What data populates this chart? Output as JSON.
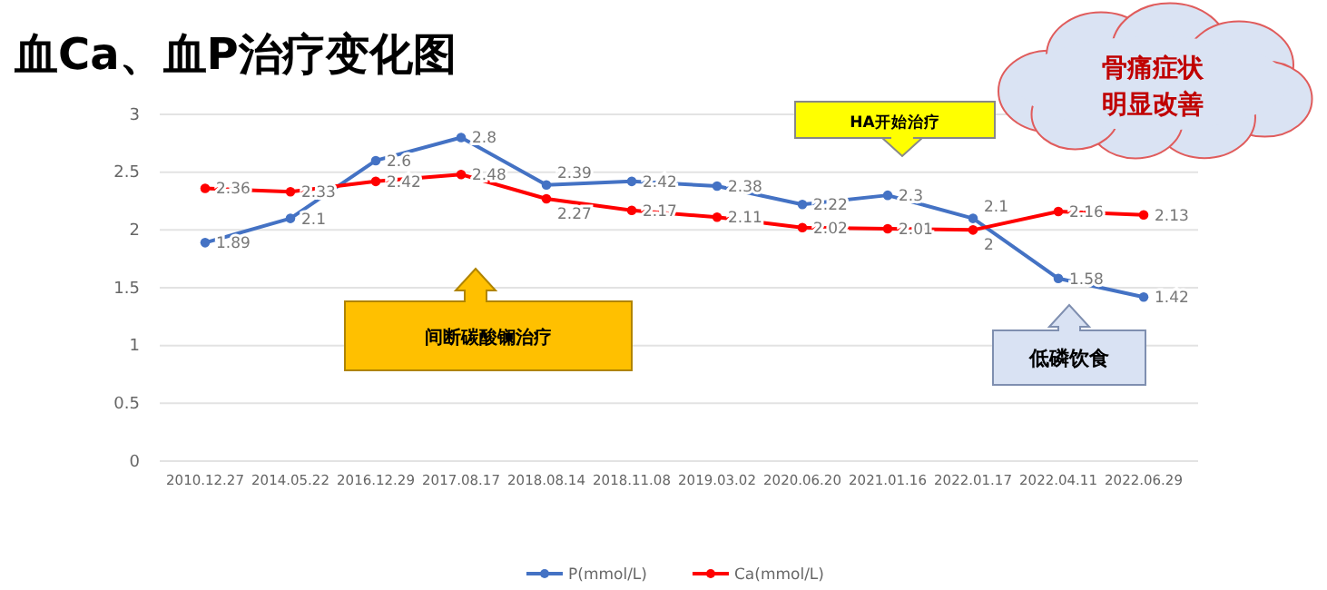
{
  "chart_data": {
    "type": "line",
    "title": "血Ca、血P治疗变化图",
    "categories": [
      "2010.12.27",
      "2014.05.22",
      "2016.12.29",
      "2017.08.17",
      "2018.08.14",
      "2018.11.08",
      "2019.03.02",
      "2020.06.20",
      "2021.01.16",
      "2022.01.17",
      "2022.04.11",
      "2022.06.29"
    ],
    "series": [
      {
        "name": "P(mmol/L)",
        "color": "#4472c4",
        "values": [
          1.89,
          2.1,
          2.6,
          2.8,
          2.39,
          2.42,
          2.38,
          2.22,
          2.3,
          2.1,
          1.58,
          1.42
        ]
      },
      {
        "name": "Ca(mmol/L)",
        "color": "#ff0000",
        "values": [
          2.36,
          2.33,
          2.42,
          2.48,
          2.27,
          2.17,
          2.11,
          2.02,
          2.01,
          2,
          2.16,
          2.13
        ]
      }
    ],
    "ylim": [
      0,
      3
    ],
    "yticks": [
      0,
      0.5,
      1,
      1.5,
      2,
      2.5,
      3
    ],
    "grid": "y",
    "legend": "bottom",
    "marker": "circle",
    "data_labels": true,
    "annotations": [
      "间断碳酸镧治疗",
      "HA开始治疗",
      "低磷饮食",
      "骨痛症状明显改善"
    ]
  }
}
